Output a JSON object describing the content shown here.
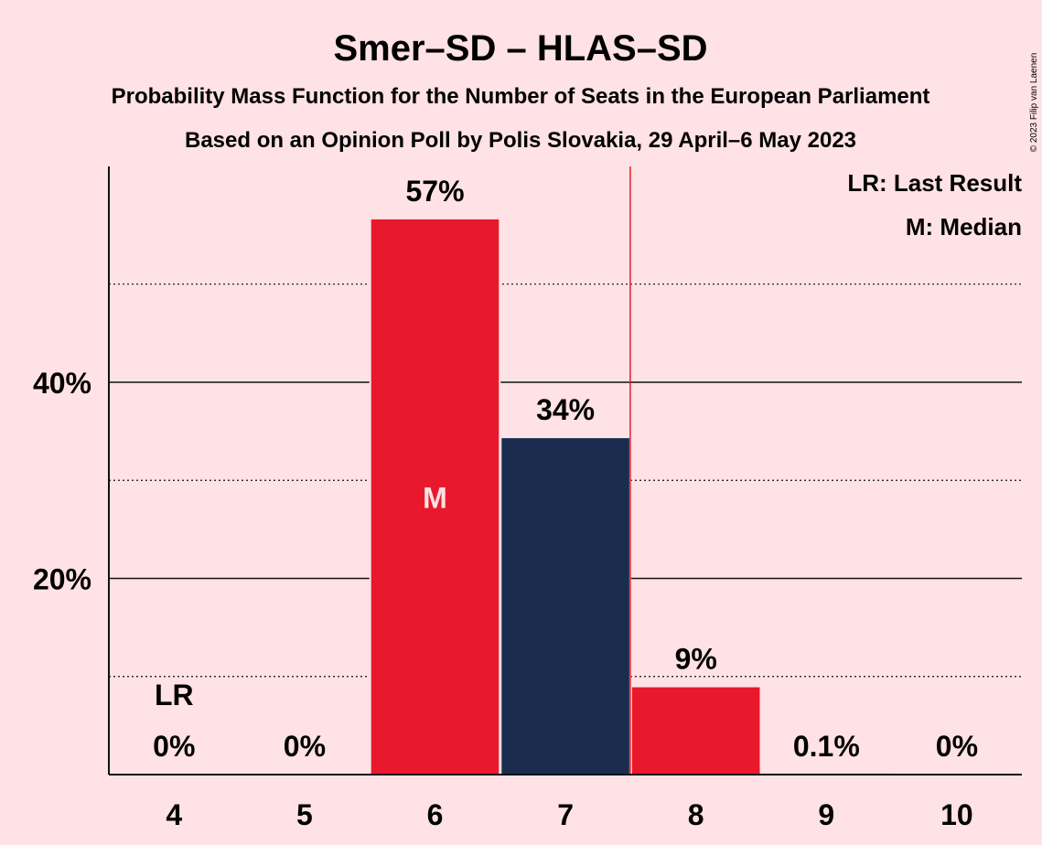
{
  "colors": {
    "background": "#FFE2E5",
    "red": "#E8192C",
    "navy": "#1B2D4E",
    "text": "#111111",
    "marker_on_bar": "#FFE2E5"
  },
  "copyright": "© 2023 Filip van Laenen",
  "legend": {
    "last_result": "LR: Last Result",
    "median": "M: Median"
  },
  "chart_data": {
    "type": "bar",
    "title": "Smer–SD – HLAS–SD",
    "subtitle": "Probability Mass Function for the Number of Seats in the European Parliament",
    "subtitle2": "Based on an Opinion Poll by Polis Slovakia, 29 April–6 May 2023",
    "xlabel": "",
    "ylabel": "",
    "categories": [
      "4",
      "5",
      "6",
      "7",
      "8",
      "9",
      "10"
    ],
    "values": [
      0,
      0,
      56.6,
      34.3,
      8.9,
      0.1,
      0
    ],
    "value_labels": [
      "0%",
      "0%",
      "57%",
      "34%",
      "9%",
      "0.1%",
      "0%"
    ],
    "bar_colors": [
      "red",
      "red",
      "red",
      "navy",
      "red",
      "red",
      "red"
    ],
    "ylim": [
      0,
      62
    ],
    "yticks_major": [
      20,
      40
    ],
    "ytick_labels": [
      "20%",
      "40%"
    ],
    "yticks_minor": [
      10,
      30,
      50
    ],
    "grid": true,
    "last_result": {
      "category": "4",
      "label": "LR"
    },
    "median": {
      "category": "6",
      "label": "M"
    },
    "majority_line_after_category": "7",
    "legend_position": "top-right"
  }
}
